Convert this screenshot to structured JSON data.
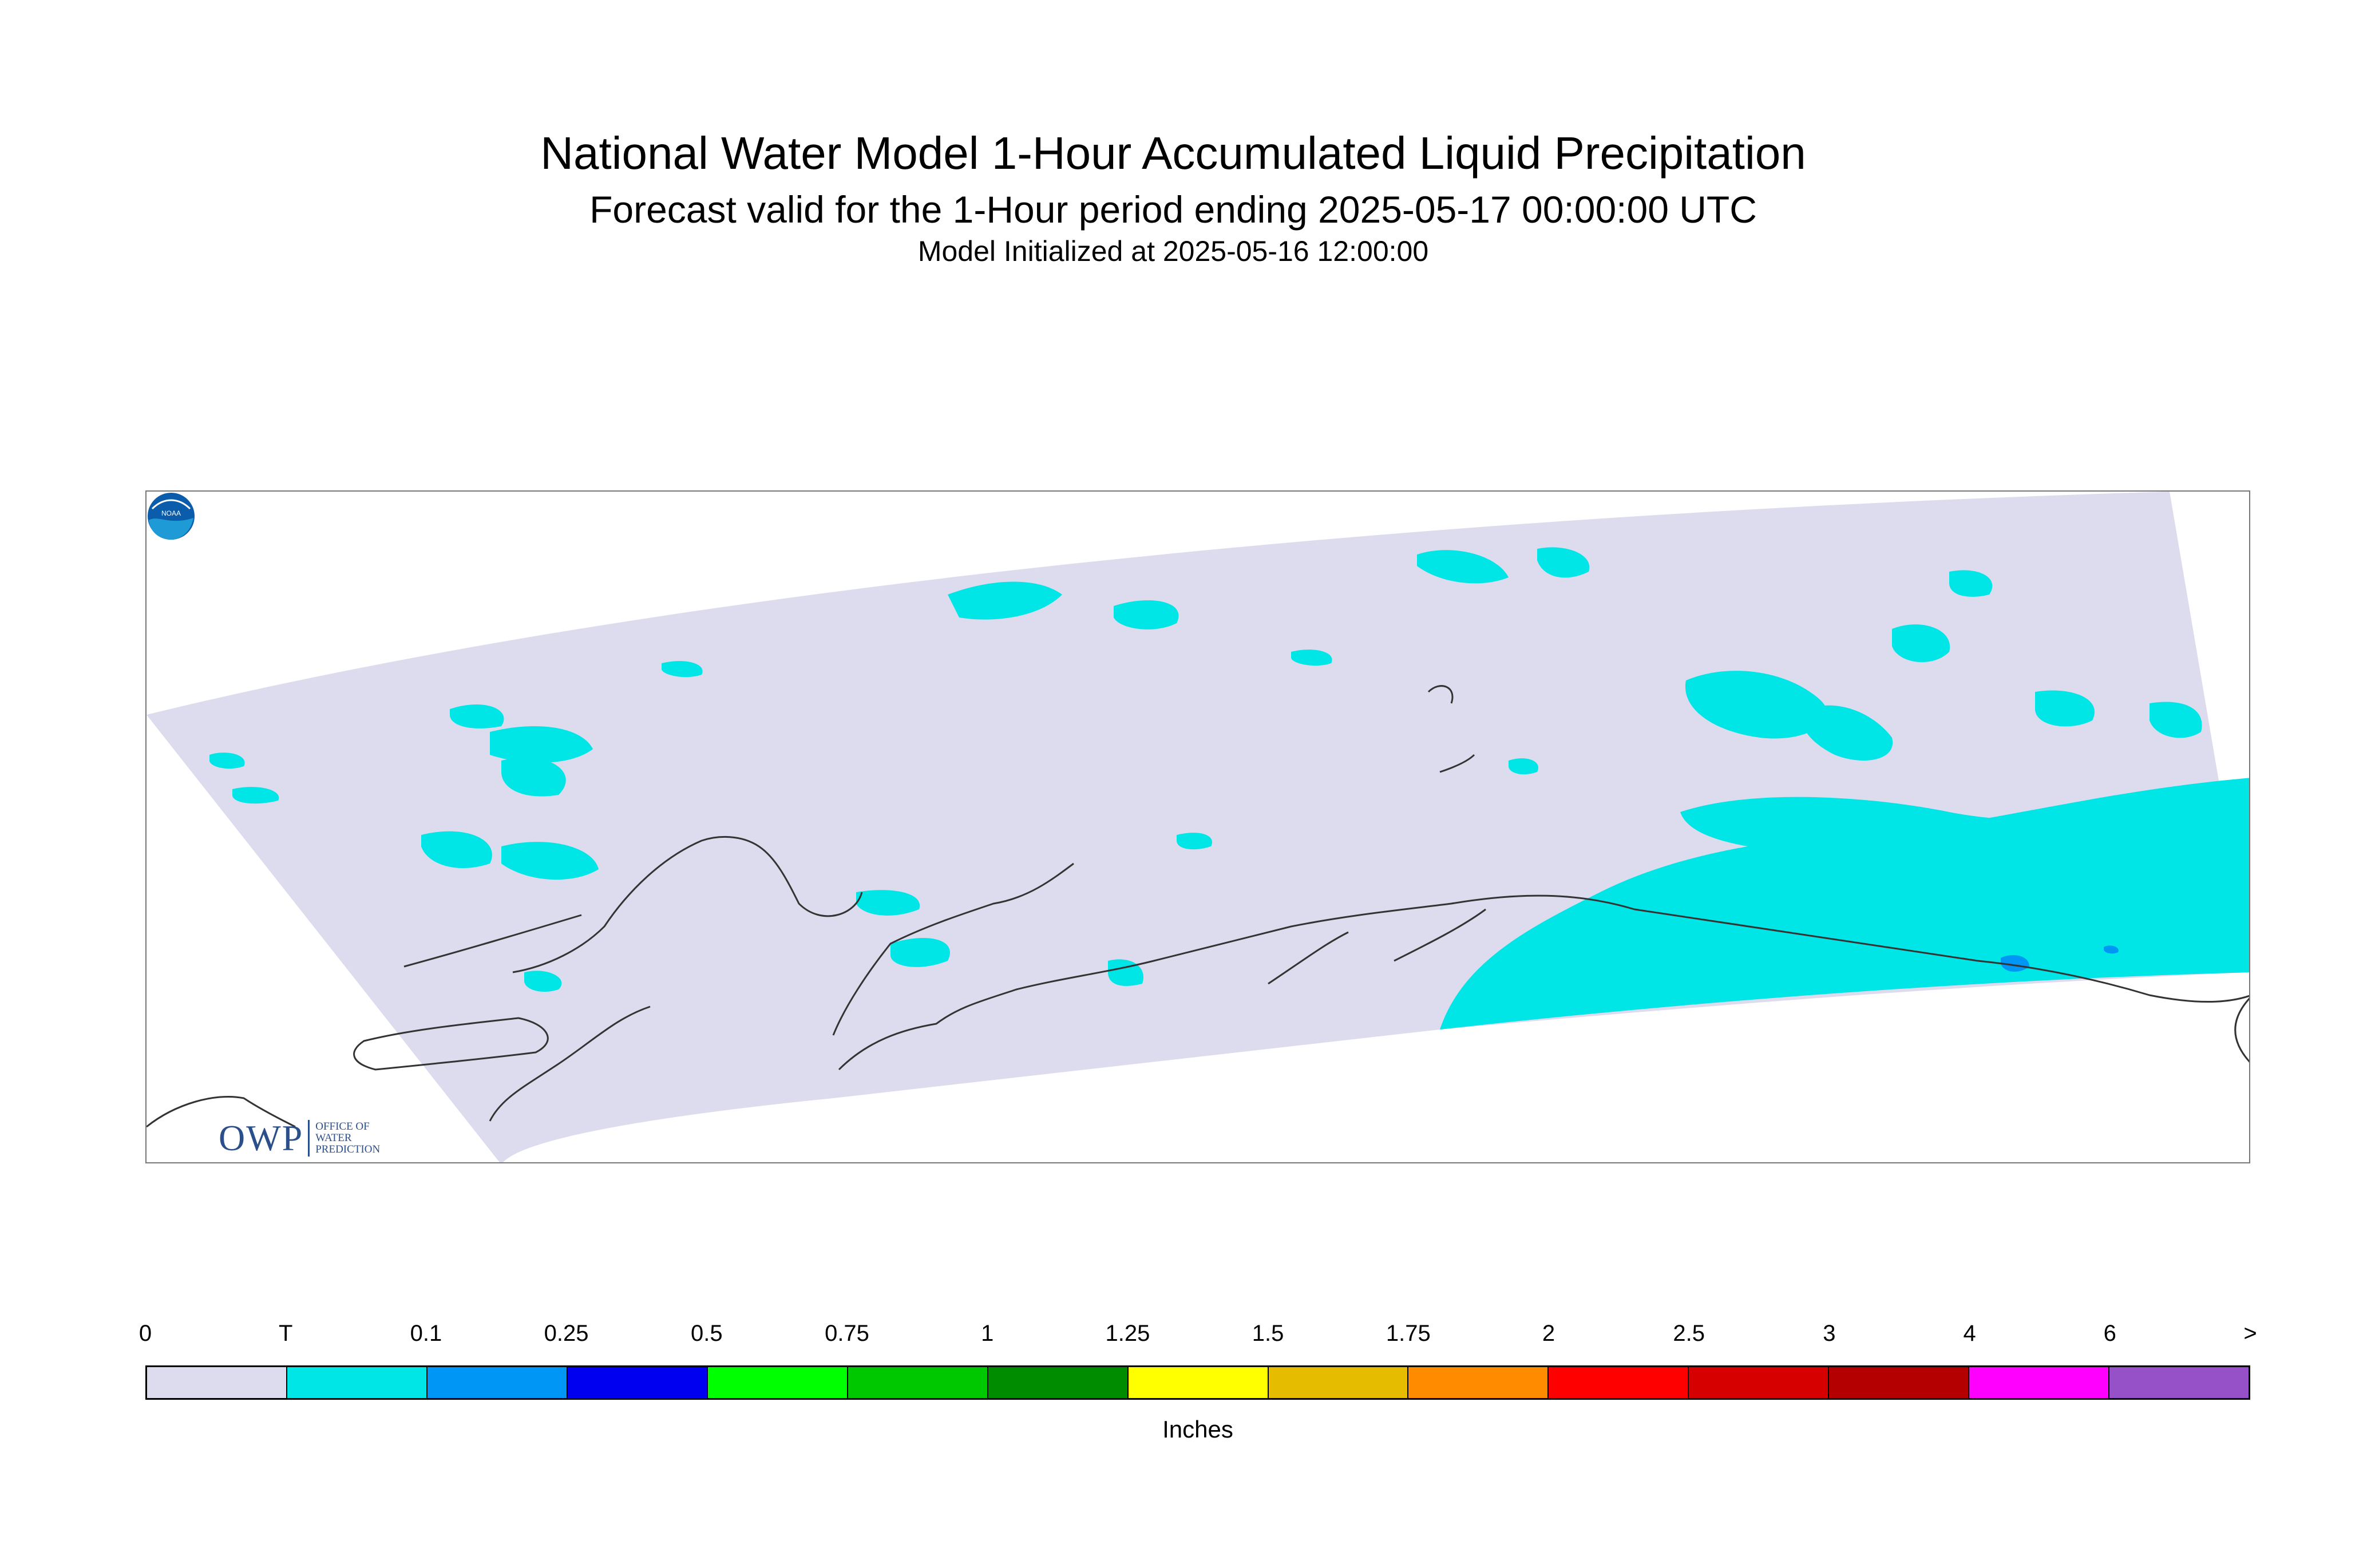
{
  "header": {
    "title": "National Water Model 1-Hour Accumulated Liquid Precipitation",
    "subtitle": "Forecast valid for the 1-Hour period ending 2025-05-17 00:00:00 UTC",
    "initialized": "Model Initialized at 2025-05-16 12:00:00"
  },
  "logos": {
    "owp_mark": "OWP",
    "owp_text": [
      "OFFICE OF",
      "WATER",
      "PREDICTION"
    ],
    "noaa_text": "NOAA"
  },
  "map": {
    "domain_fill_color": "#dcdcee",
    "precip_trace_color": "#00e5e5",
    "precip_low_color": "#0096f5",
    "coastline_color": "#333333"
  },
  "legend": {
    "tick_labels": [
      "0",
      "T",
      "0.1",
      "0.25",
      "0.5",
      "0.75",
      "1",
      "1.25",
      "1.5",
      "1.75",
      "2",
      "2.5",
      "3",
      "4",
      "6",
      ">"
    ],
    "colors": [
      "#dcdcee",
      "#00e5e5",
      "#0096f5",
      "#0000f0",
      "#00ff00",
      "#00c800",
      "#008c00",
      "#ffff00",
      "#e6bc00",
      "#ff8c00",
      "#ff0000",
      "#d60000",
      "#b40000",
      "#ff00ff",
      "#9650c8"
    ],
    "units": "Inches"
  }
}
